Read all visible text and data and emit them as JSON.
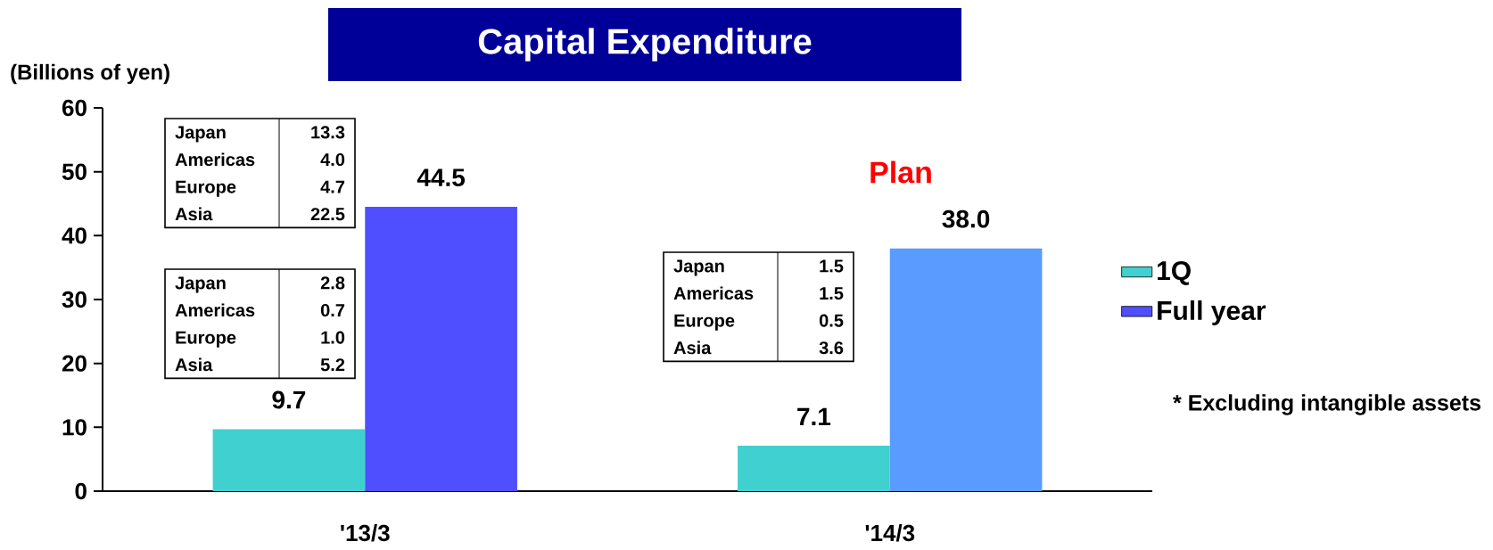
{
  "chart_data": {
    "type": "bar",
    "title": "Capital Expenditure",
    "ylabel": "(Billions of yen)",
    "categories": [
      "'13/3",
      "'14/3"
    ],
    "series": [
      {
        "name": "1Q",
        "color": "#40d0d0",
        "values": [
          9.7,
          7.1
        ],
        "value_labels": [
          "9.7",
          "7.1"
        ]
      },
      {
        "name": "Full year",
        "color": "#4f4fff",
        "colors": [
          "#4f4fff",
          "#5a9bff"
        ],
        "values": [
          44.5,
          38.0
        ],
        "value_labels": [
          "44.5",
          "38.0"
        ]
      }
    ],
    "ylim": [
      0,
      60
    ],
    "yticks": [
      0,
      10,
      20,
      30,
      40,
      50,
      60
    ],
    "legend": "right",
    "annotations": [
      "Japan",
      "13.3",
      "Americas",
      "4.0",
      "Europe",
      "4.7",
      "Asia",
      "22.5",
      "Japan",
      "2.8",
      "Americas",
      "0.7",
      "Europe",
      "1.0",
      "Asia",
      "5.2",
      "Japan",
      "1.5",
      "Americas",
      "1.5",
      "Europe",
      "0.5",
      "Asia",
      "3.6",
      "Plan",
      "* Excluding intangible assets"
    ]
  }
}
